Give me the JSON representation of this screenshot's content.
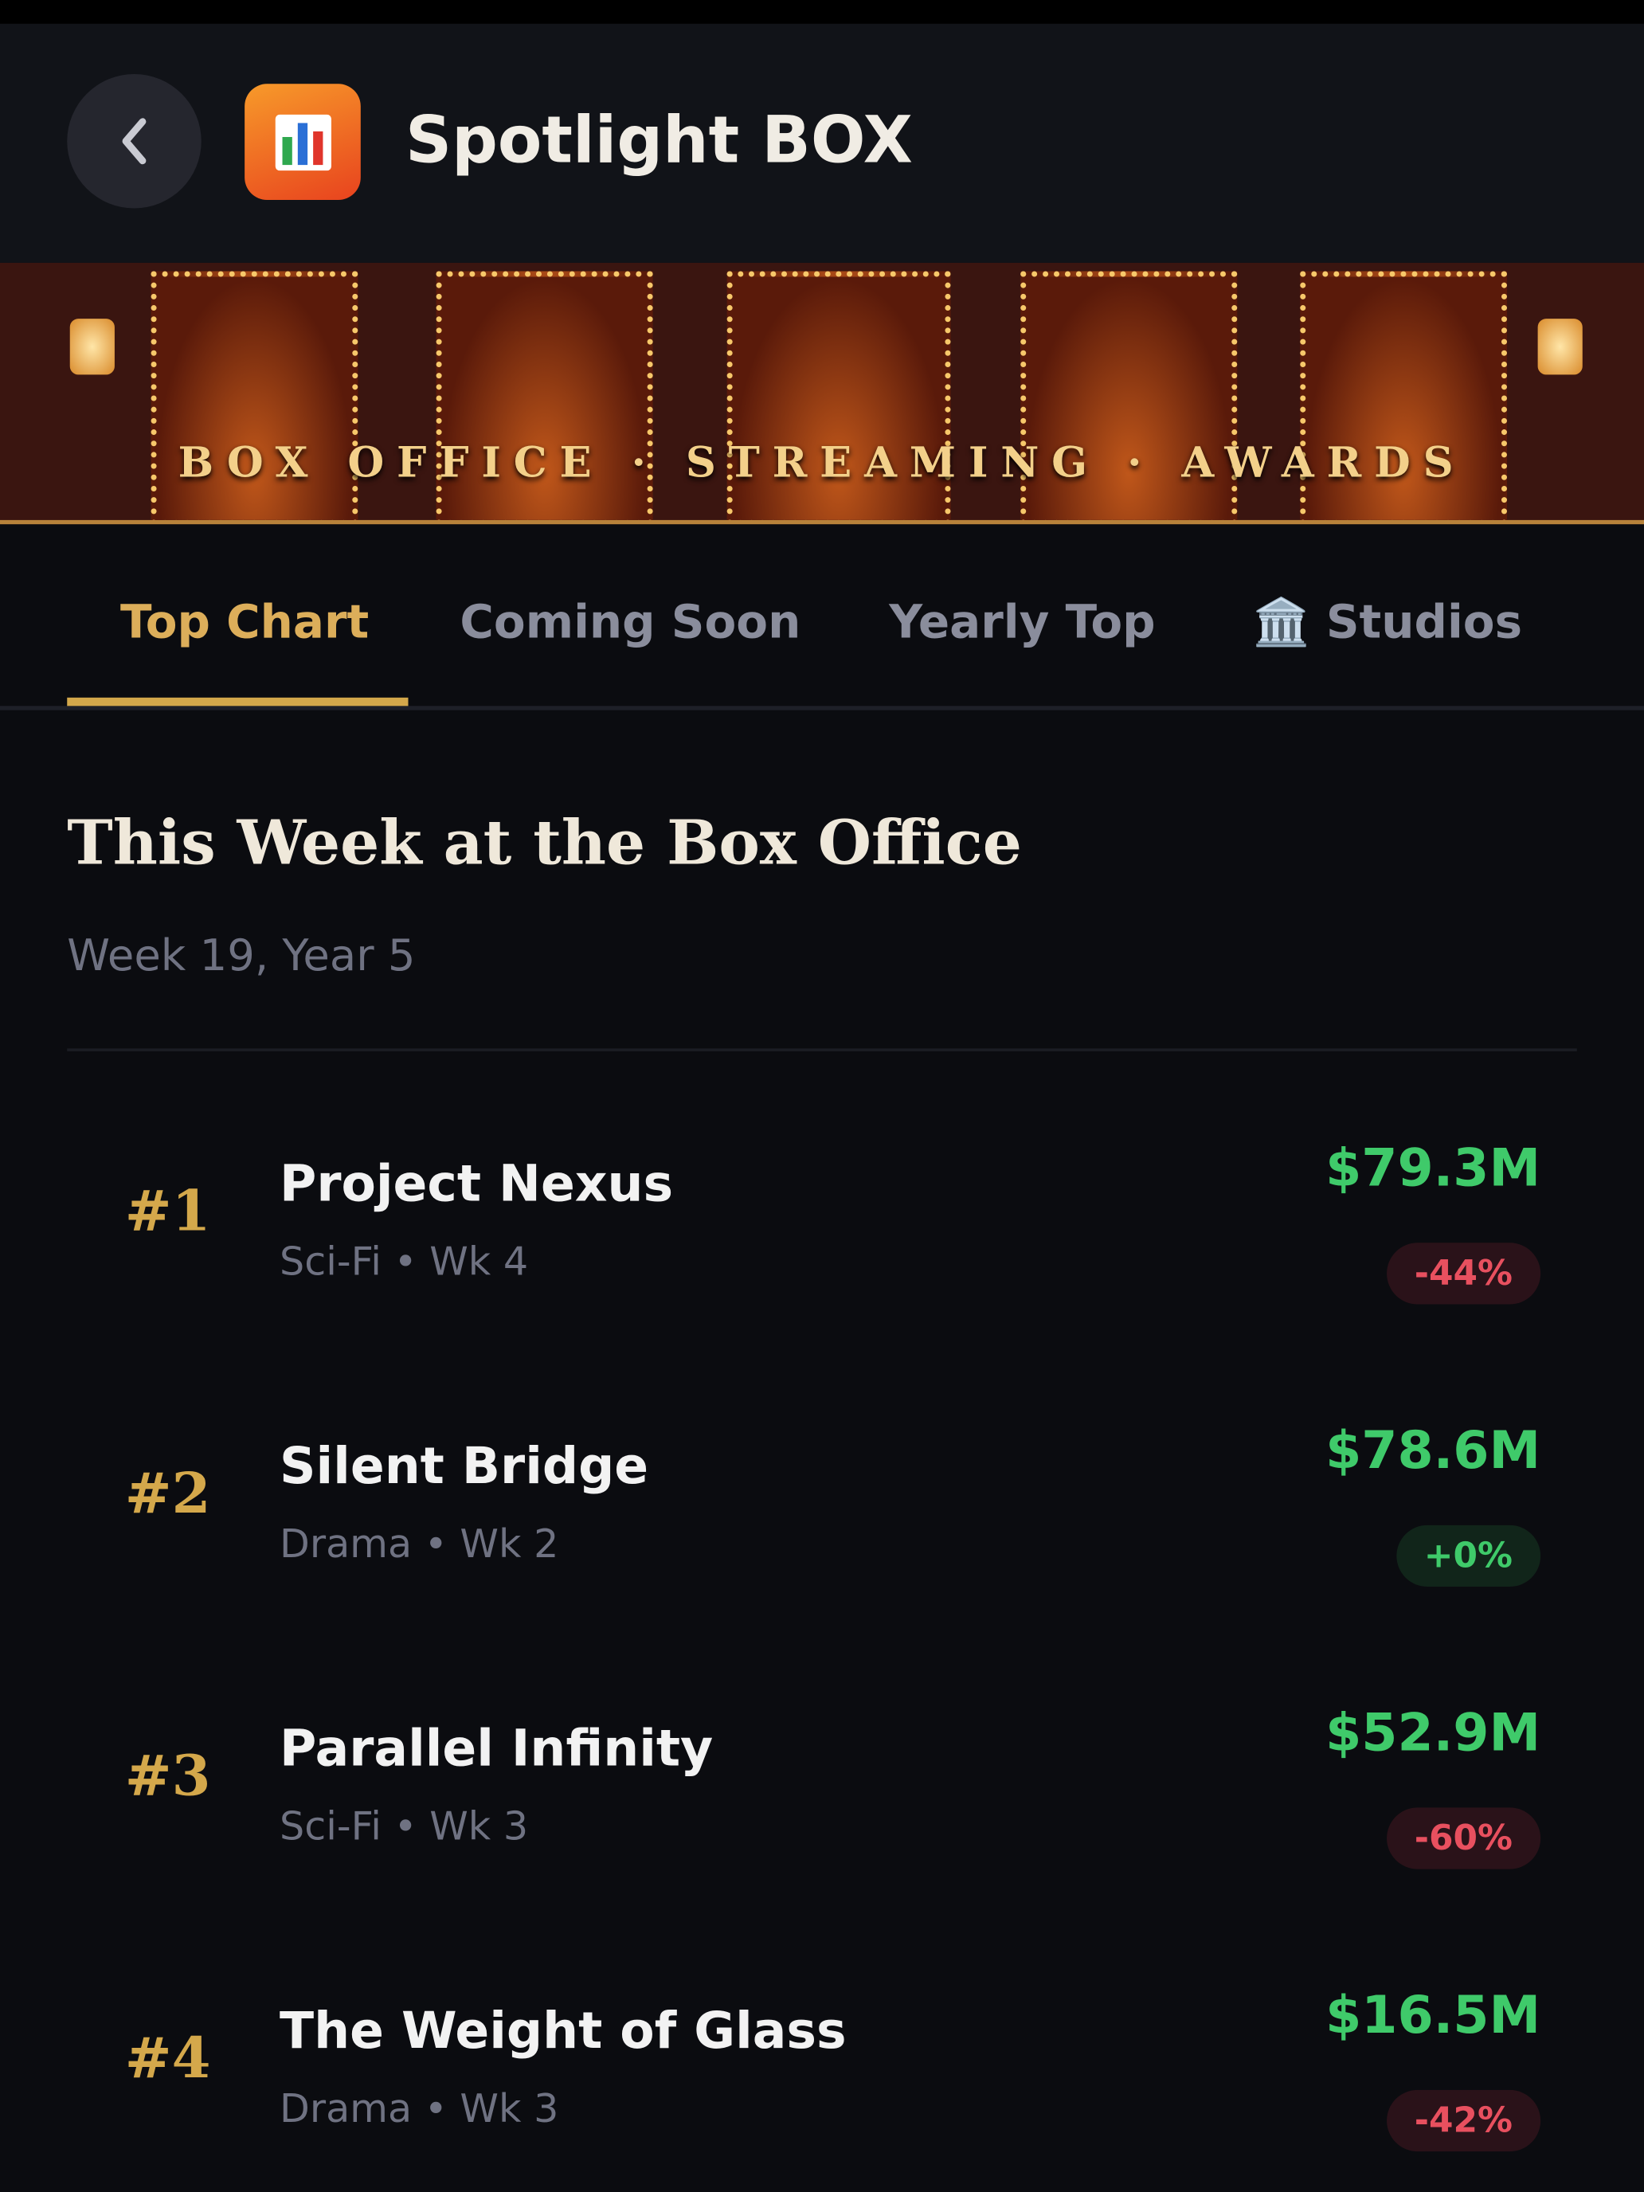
{
  "header": {
    "title": "Spotlight BOX"
  },
  "banner": {
    "tagline": "BOX OFFICE · STREAMING · AWARDS"
  },
  "tabs": [
    "Top Chart",
    "Coming Soon",
    "Yearly Top",
    "🏛️ Studios"
  ],
  "section": {
    "title": "This Week at the Box Office",
    "subtitle": "Week 19, Year 5"
  },
  "rows": [
    {
      "rank": "#1",
      "title": "Project Nexus",
      "meta": "Sci-Fi • Wk 4",
      "gross": "$79.3M",
      "change": "-44%"
    },
    {
      "rank": "#2",
      "title": "Silent Bridge",
      "meta": "Drama • Wk 2",
      "gross": "$78.6M",
      "change": "+0%"
    },
    {
      "rank": "#3",
      "title": "Parallel Infinity",
      "meta": "Sci-Fi • Wk 3",
      "gross": "$52.9M",
      "change": "-60%"
    },
    {
      "rank": "#4",
      "title": "The Weight of Glass",
      "meta": "Drama • Wk 3",
      "gross": "$16.5M",
      "change": "-42%"
    }
  ]
}
